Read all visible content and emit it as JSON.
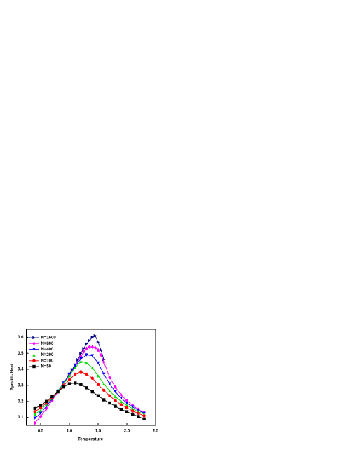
{
  "chart_data": {
    "type": "line",
    "x_label": "Temperature",
    "y_label": "Specific Heat",
    "xlim": [
      0.25,
      2.5
    ],
    "ylim": [
      0.05,
      0.65
    ],
    "xticks": [
      0.5,
      {
        "value": 1,
        "label": "1.0"
      },
      1.5,
      {
        "value": 2,
        "label": "2.0"
      },
      2.5
    ],
    "yticks": [
      0.1,
      0.2,
      0.3,
      0.4,
      0.5,
      0.6
    ],
    "legend": "top-left",
    "series": [
      {
        "name": "N=1600",
        "color": "#000080",
        "marker": "triangle-right",
        "x": [
          1.0,
          1.05,
          1.1,
          1.15,
          1.2,
          1.25,
          1.3,
          1.35,
          1.4,
          1.45,
          1.5,
          1.55,
          1.6
        ],
        "values": [
          0.37,
          0.4,
          0.43,
          0.46,
          0.5,
          0.53,
          0.56,
          0.58,
          0.6,
          0.61,
          0.57,
          0.52,
          0.46
        ]
      },
      {
        "name": "N=800",
        "color": "#ff00ff",
        "marker": "diamond",
        "x": [
          0.4,
          0.5,
          0.6,
          0.7,
          0.8,
          0.9,
          1.0,
          1.1,
          1.2,
          1.25,
          1.3,
          1.35,
          1.4,
          1.45,
          1.5,
          1.55,
          1.6,
          1.7,
          1.8,
          1.9,
          2.0,
          2.1,
          2.2,
          2.3
        ],
        "values": [
          0.065,
          0.105,
          0.155,
          0.205,
          0.26,
          0.31,
          0.365,
          0.42,
          0.48,
          0.51,
          0.53,
          0.54,
          0.54,
          0.535,
          0.52,
          0.49,
          0.445,
          0.35,
          0.29,
          0.24,
          0.205,
          0.175,
          0.15,
          0.13
        ]
      },
      {
        "name": "N=400",
        "color": "#0000ff",
        "marker": "triangle-down",
        "x": [
          0.4,
          0.5,
          0.6,
          0.7,
          0.8,
          0.9,
          1.0,
          1.1,
          1.2,
          1.3,
          1.4,
          1.5,
          1.6,
          1.7,
          1.8,
          1.9,
          2.0,
          2.1,
          2.2,
          2.3
        ],
        "values": [
          0.095,
          0.125,
          0.17,
          0.215,
          0.265,
          0.315,
          0.37,
          0.42,
          0.465,
          0.49,
          0.485,
          0.44,
          0.37,
          0.31,
          0.26,
          0.22,
          0.19,
          0.165,
          0.145,
          0.125
        ]
      },
      {
        "name": "N=200",
        "color": "#00dd00",
        "marker": "triangle-up",
        "x": [
          0.4,
          0.5,
          0.6,
          0.7,
          0.8,
          0.9,
          1.0,
          1.1,
          1.2,
          1.3,
          1.4,
          1.5,
          1.6,
          1.7,
          1.8,
          1.9,
          2.0,
          2.1,
          2.2,
          2.3
        ],
        "values": [
          0.12,
          0.145,
          0.18,
          0.22,
          0.265,
          0.31,
          0.36,
          0.41,
          0.45,
          0.44,
          0.41,
          0.36,
          0.31,
          0.265,
          0.23,
          0.2,
          0.175,
          0.155,
          0.135,
          0.12
        ]
      },
      {
        "name": "N=100",
        "color": "#ff0000",
        "marker": "circle",
        "x": [
          0.4,
          0.5,
          0.6,
          0.7,
          0.8,
          0.9,
          1.0,
          1.1,
          1.2,
          1.3,
          1.4,
          1.5,
          1.6,
          1.7,
          1.8,
          1.9,
          2.0,
          2.1,
          2.2,
          2.3
        ],
        "values": [
          0.135,
          0.16,
          0.19,
          0.225,
          0.26,
          0.3,
          0.335,
          0.37,
          0.385,
          0.37,
          0.345,
          0.305,
          0.27,
          0.235,
          0.205,
          0.18,
          0.16,
          0.14,
          0.125,
          0.11
        ]
      },
      {
        "name": "N=50",
        "color": "#000000",
        "marker": "square",
        "x": [
          0.4,
          0.5,
          0.6,
          0.7,
          0.8,
          0.9,
          1.0,
          1.1,
          1.2,
          1.3,
          1.4,
          1.5,
          1.6,
          1.7,
          1.8,
          1.9,
          2.0,
          2.1,
          2.2,
          2.3
        ],
        "values": [
          0.155,
          0.175,
          0.2,
          0.23,
          0.26,
          0.29,
          0.31,
          0.315,
          0.305,
          0.285,
          0.26,
          0.235,
          0.21,
          0.19,
          0.17,
          0.15,
          0.135,
          0.12,
          0.105,
          0.09
        ]
      }
    ]
  }
}
